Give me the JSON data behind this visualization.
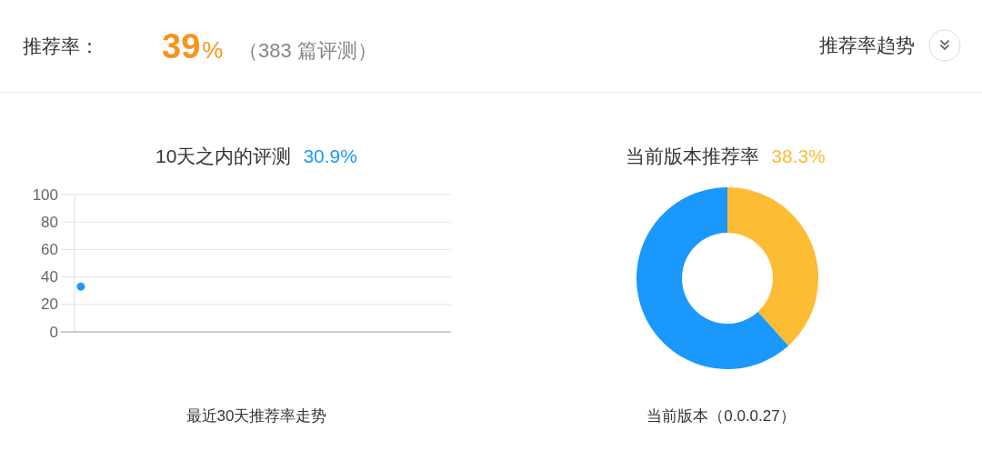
{
  "chart_data": [
    {
      "type": "other",
      "title": "推荐率：",
      "annotations": [
        "39%",
        "（383 篇评测）",
        "推荐率趋势"
      ]
    },
    {
      "type": "line",
      "title": "10天之内的评测",
      "subtitle": "30.9%",
      "xlabel": "最近30天推荐率走势",
      "categories": [
        null,
        null,
        null,
        null,
        null,
        null,
        null,
        null,
        null,
        null,
        null,
        null,
        null,
        null,
        null,
        null,
        null,
        null,
        null,
        null,
        null,
        null,
        null,
        null,
        null,
        null,
        null,
        null,
        null,
        null
      ],
      "values": [
        33,
        null,
        null,
        null,
        null,
        null,
        null,
        null,
        null,
        null,
        null,
        null,
        null,
        null,
        null,
        null,
        null,
        null,
        null,
        null,
        null,
        null,
        null,
        null,
        null,
        null,
        null,
        null,
        null,
        null
      ],
      "color": "#1a98fc",
      "ylim": [
        0,
        100
      ],
      "yticks": [
        0,
        20,
        40,
        60,
        80,
        100
      ],
      "grid": "y",
      "marker": "circle",
      "tick_labels": "y"
    },
    {
      "type": "donut",
      "title": "当前版本推荐率",
      "subtitle": "38.3%",
      "categories": [
        null,
        null
      ],
      "values": [
        38.3,
        61.7
      ],
      "colors": [
        "#fcbc33",
        "#1a98fc"
      ],
      "annotations": [
        "当前版本（0.0.0.27）"
      ]
    }
  ]
}
